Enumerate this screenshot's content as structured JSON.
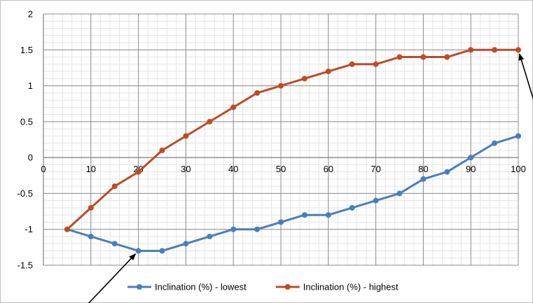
{
  "chart_data": {
    "type": "line",
    "title": "",
    "xlabel": "",
    "ylabel": "",
    "xlim": [
      0,
      100
    ],
    "ylim": [
      -1.5,
      2
    ],
    "x_ticks": [
      "0",
      "10",
      "20",
      "30",
      "40",
      "50",
      "60",
      "70",
      "80",
      "90",
      "100"
    ],
    "y_ticks": [
      "2",
      "1.5",
      "1",
      "0.5",
      "0",
      "-0.5",
      "-1",
      "-1.5"
    ],
    "grid": true,
    "legend_position": "bottom",
    "x": [
      5,
      10,
      15,
      20,
      25,
      30,
      35,
      40,
      45,
      50,
      55,
      60,
      65,
      70,
      75,
      80,
      85,
      90,
      95,
      100
    ],
    "series": [
      {
        "name": "Inclination (%) - lowest",
        "color": "#4a7ebb",
        "values": [
          -1.0,
          -1.1,
          -1.2,
          -1.3,
          -1.3,
          -1.2,
          -1.1,
          -1.0,
          -1.0,
          -0.9,
          -0.8,
          -0.8,
          -0.7,
          -0.6,
          -0.5,
          -0.3,
          -0.2,
          0.0,
          0.2,
          0.3
        ]
      },
      {
        "name": "Inclination (%) - highest",
        "color": "#be4b27",
        "values": [
          -1.0,
          -0.7,
          -0.4,
          -0.2,
          0.1,
          0.3,
          0.5,
          0.7,
          0.9,
          1.0,
          1.1,
          1.2,
          1.3,
          1.3,
          1.4,
          1.4,
          1.4,
          1.5,
          1.5,
          1.5
        ]
      }
    ],
    "annotations": [
      {
        "kind": "arrow",
        "points_to": {
          "series": 0,
          "x": 20,
          "y": -1.3
        }
      },
      {
        "kind": "arrow",
        "points_to": {
          "series": 1,
          "x": 100,
          "y": 1.5
        }
      }
    ]
  }
}
